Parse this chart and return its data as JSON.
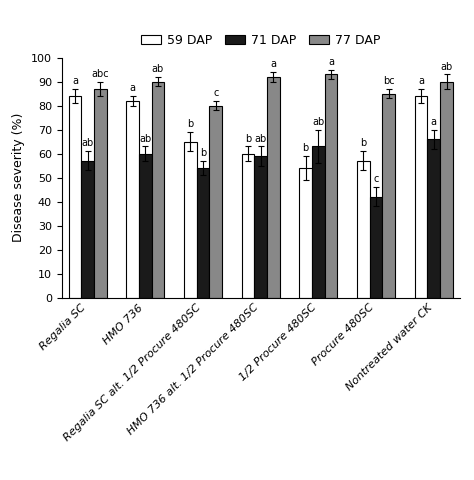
{
  "categories": [
    "Regalia SC",
    "HMO 736",
    "Regalia SC alt. 1/2 Procure 480SC",
    "HMO 736 alt. 1/2 Procure 480SC",
    "1/2 Procure 480SC",
    "Procure 480SC",
    "Nontreated water CK"
  ],
  "values_59": [
    84,
    82,
    65,
    60,
    54,
    57,
    84
  ],
  "values_71": [
    57,
    60,
    54,
    59,
    63,
    42,
    66
  ],
  "values_77": [
    87,
    90,
    80,
    92,
    93,
    85,
    90
  ],
  "err_59": [
    3,
    2,
    4,
    3,
    5,
    4,
    3
  ],
  "err_71": [
    4,
    3,
    3,
    4,
    7,
    4,
    4
  ],
  "err_77": [
    3,
    2,
    2,
    2,
    2,
    2,
    3
  ],
  "labels_59": [
    "a",
    "a",
    "b",
    "b",
    "b",
    "b",
    "a"
  ],
  "labels_71": [
    "ab",
    "ab",
    "b",
    "ab",
    "ab",
    "c",
    "a"
  ],
  "labels_77": [
    "abc",
    "ab",
    "c",
    "a",
    "a",
    "bc",
    "ab"
  ],
  "colors": [
    "white",
    "#1a1a1a",
    "#888888"
  ],
  "edge_color": "black",
  "ylabel": "Disease severity (%)",
  "ylim": [
    0,
    100
  ],
  "yticks": [
    0,
    10,
    20,
    30,
    40,
    50,
    60,
    70,
    80,
    90,
    100
  ],
  "legend_labels": [
    "59 DAP",
    "71 DAP",
    "77 DAP"
  ],
  "bar_width": 0.22,
  "figsize": [
    4.74,
    4.8
  ],
  "dpi": 100,
  "label_fontsize": 7,
  "tick_fontsize": 8,
  "ylabel_fontsize": 9,
  "legend_fontsize": 9
}
